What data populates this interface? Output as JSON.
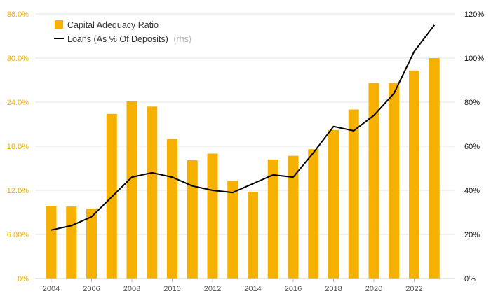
{
  "chart_data": {
    "type": "bar+line",
    "x": [
      2004,
      2005,
      2006,
      2007,
      2008,
      2009,
      2010,
      2011,
      2012,
      2013,
      2014,
      2015,
      2016,
      2017,
      2018,
      2019,
      2020,
      2021,
      2022,
      2023
    ],
    "x_tick_labels": [
      "2004",
      "2006",
      "2008",
      "2010",
      "2012",
      "2014",
      "2016",
      "2018",
      "2020",
      "2022"
    ],
    "series": [
      {
        "name": "Capital Adequacy Ratio",
        "type": "bar",
        "axis": "left",
        "color": "#f5b000",
        "values": [
          9.9,
          9.8,
          9.5,
          22.4,
          24.1,
          23.4,
          19.0,
          16.1,
          17.0,
          13.3,
          11.8,
          16.2,
          16.7,
          17.6,
          20.2,
          23.0,
          26.6,
          26.6,
          28.3,
          30.0
        ]
      },
      {
        "name": "Loans (As % Of Deposits)",
        "name_suffix": "(rhs)",
        "type": "line",
        "axis": "right",
        "color": "#000000",
        "values": [
          22,
          24,
          28,
          37,
          46,
          48,
          46,
          42,
          40,
          39,
          43,
          47,
          46,
          57,
          69,
          67,
          74,
          84,
          103,
          115
        ]
      }
    ],
    "y_left": {
      "lim": [
        0,
        36
      ],
      "ticks": [
        0,
        6,
        12,
        18,
        24,
        30,
        36
      ],
      "tick_labels": [
        "0%",
        "6.00%",
        "12.0%",
        "18.0%",
        "24.0%",
        "30.0%",
        "36.0%"
      ],
      "color": "#f5b000"
    },
    "y_right": {
      "lim": [
        0,
        120
      ],
      "ticks": [
        0,
        20,
        40,
        60,
        80,
        100,
        120
      ],
      "tick_labels": [
        "0%",
        "20%",
        "40%",
        "60%",
        "80%",
        "100%",
        "120%"
      ],
      "color": "#111111"
    },
    "grid": true,
    "legend_position": "top-left"
  }
}
